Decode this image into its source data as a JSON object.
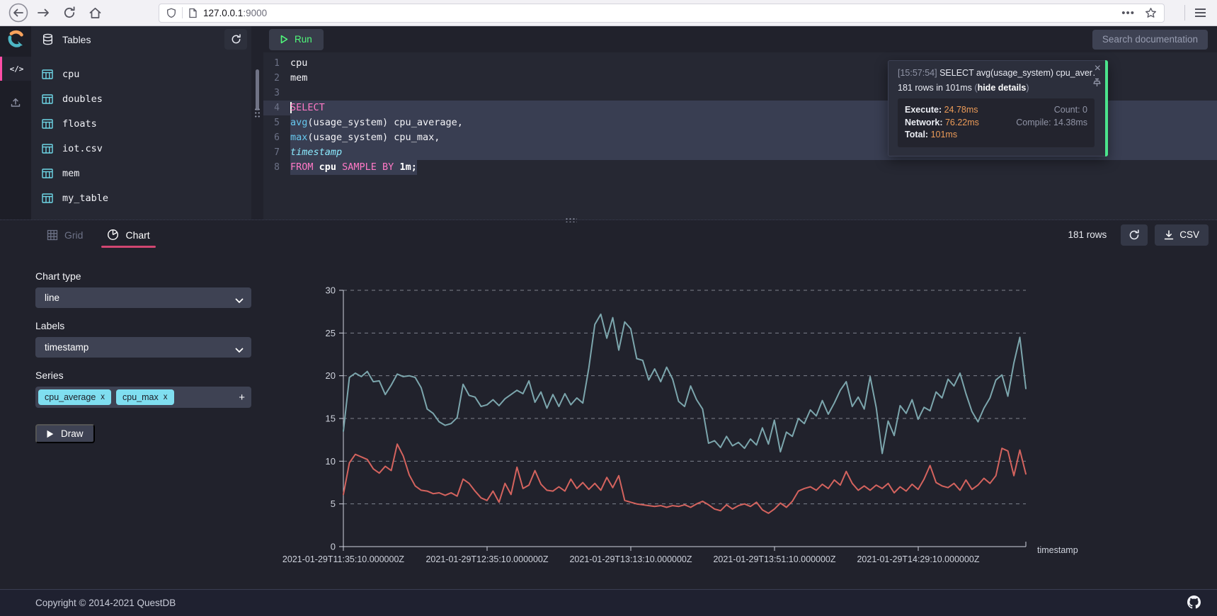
{
  "browser": {
    "url_host": "127.0.0.1",
    "url_port": ":9000"
  },
  "header": {
    "tables_title": "Tables",
    "run_label": "Run",
    "search_placeholder": "Search documentation"
  },
  "sidebar": {
    "tables": [
      {
        "name": "cpu"
      },
      {
        "name": "doubles"
      },
      {
        "name": "floats"
      },
      {
        "name": "iot.csv"
      },
      {
        "name": "mem"
      },
      {
        "name": "my_table"
      }
    ]
  },
  "editor": {
    "lines": [
      {
        "tokens": [
          {
            "t": "cpu",
            "c": "plain"
          }
        ]
      },
      {
        "tokens": [
          {
            "t": "mem",
            "c": "plain"
          }
        ]
      },
      {
        "tokens": []
      },
      {
        "tokens": [
          {
            "t": "SELECT",
            "c": "kw"
          }
        ],
        "sel": "full",
        "cursor": true
      },
      {
        "tokens": [
          {
            "t": "avg",
            "c": "fn"
          },
          {
            "t": "(usage_system) cpu_average,",
            "c": "plain"
          }
        ],
        "sel": "full"
      },
      {
        "tokens": [
          {
            "t": "max",
            "c": "fn"
          },
          {
            "t": "(usage_system) cpu_max,",
            "c": "plain"
          }
        ],
        "sel": "full"
      },
      {
        "tokens": [
          {
            "t": "timestamp",
            "c": "ts"
          }
        ],
        "sel": "full"
      },
      {
        "tokens": [
          {
            "t": "FROM ",
            "c": "kw"
          },
          {
            "t": "cpu ",
            "c": "b"
          },
          {
            "t": "SAMPLE BY ",
            "c": "kw"
          },
          {
            "t": "1m;",
            "c": "b"
          }
        ],
        "sel": "fit"
      }
    ]
  },
  "notification": {
    "time": "[15:57:54]",
    "query": "SELECT avg(usage_system) cpu_aver…",
    "summary": "181 rows in 101ms",
    "hide_details": "hide details",
    "execute_label": "Execute:",
    "execute_value": "24.78ms",
    "network_label": "Network:",
    "network_value": "76.22ms",
    "total_label": "Total:",
    "total_value": "101ms",
    "count_label": "Count:",
    "count_value": "0",
    "compile_label": "Compile:",
    "compile_value": "14.38ms"
  },
  "results": {
    "tabs": [
      {
        "label": "Grid"
      },
      {
        "label": "Chart"
      }
    ],
    "rows_count": "181 rows",
    "csv_label": "CSV"
  },
  "chart_controls": {
    "chart_type_label": "Chart type",
    "chart_type_value": "line",
    "labels_label": "Labels",
    "labels_value": "timestamp",
    "series_label": "Series",
    "series_tags": [
      "cpu_average",
      "cpu_max"
    ],
    "draw_label": "Draw"
  },
  "chart_data": {
    "type": "line",
    "xlabel": "timestamp",
    "ylim": [
      0,
      30
    ],
    "yticks": [
      0,
      5,
      10,
      15,
      20,
      25,
      30
    ],
    "grid": "horizontal-dashed",
    "legend": "none",
    "x_tick_labels": [
      "2021-01-29T11:35:10.000000Z",
      "2021-01-29T12:35:10.000000Z",
      "2021-01-29T13:13:10.000000Z",
      "2021-01-29T13:51:10.000000Z",
      "2021-01-29T14:29:10.000000Z"
    ],
    "series": [
      {
        "name": "cpu_average",
        "color": "#d4635e",
        "values": [
          6.1,
          9.8,
          10.8,
          10.5,
          10.2,
          9.1,
          8.6,
          9.4,
          8.9,
          12.0,
          10.6,
          8.4,
          7.1,
          6.6,
          6.5,
          6.2,
          6.3,
          6.0,
          6.3,
          5.9,
          7.9,
          7.4,
          6.5,
          5.7,
          5.4,
          6.5,
          5.2,
          7.4,
          6.1,
          9.3,
          6.8,
          7.2,
          8.9,
          7.3,
          6.6,
          6.5,
          7.0,
          6.5,
          7.9,
          6.8,
          7.5,
          6.7,
          7.4,
          6.6,
          8.1,
          6.9,
          8.3,
          5.4,
          5.2,
          5.0,
          4.9,
          4.8,
          4.7,
          4.8,
          4.6,
          4.8,
          4.7,
          4.9,
          4.6,
          5.0,
          5.3,
          4.9,
          4.4,
          4.2,
          4.9,
          4.4,
          4.8,
          5.0,
          4.7,
          5.2,
          4.3,
          3.9,
          4.4,
          5.1,
          4.6,
          5.3,
          6.5,
          6.8,
          7.0,
          6.6,
          7.3,
          6.8,
          7.8,
          7.2,
          8.8,
          7.4,
          6.6,
          7.1,
          6.6,
          7.2,
          6.8,
          7.4,
          6.3,
          7.0,
          6.5,
          7.3,
          6.7,
          7.9,
          9.5,
          7.5,
          7.1,
          6.9,
          7.4,
          6.6,
          7.8,
          6.7,
          7.2,
          8.0,
          7.4,
          8.3,
          11.5,
          11.2,
          8.3,
          11.3,
          8.5
        ]
      },
      {
        "name": "cpu_max",
        "color": "#7ca6ad",
        "values": [
          13.5,
          19.8,
          20.3,
          19.9,
          20.5,
          19.3,
          19.4,
          17.8,
          18.9,
          20.2,
          19.9,
          20.0,
          19.8,
          18.6,
          16.1,
          15.6,
          14.6,
          14.2,
          14.4,
          15.1,
          19.0,
          17.7,
          17.5,
          16.4,
          16.6,
          17.2,
          16.5,
          17.3,
          17.8,
          18.3,
          17.9,
          19.4,
          16.9,
          18.1,
          16.2,
          17.8,
          16.4,
          17.9,
          16.6,
          17.4,
          16.8,
          20.9,
          26.0,
          27.2,
          24.4,
          26.8,
          23.0,
          26.3,
          25.5,
          22.0,
          21.8,
          19.5,
          20.8,
          19.3,
          21.0,
          19.6,
          17.0,
          16.4,
          18.8,
          17.2,
          16.1,
          12.1,
          12.4,
          11.6,
          12.9,
          11.8,
          12.2,
          11.5,
          12.6,
          11.9,
          13.9,
          12.0,
          14.8,
          11.1,
          13.4,
          12.9,
          15.0,
          14.4,
          16.0,
          15.3,
          17.1,
          15.5,
          16.8,
          18.3,
          19.3,
          16.4,
          17.5,
          16.1,
          19.9,
          16.3,
          10.9,
          14.7,
          13.0,
          16.5,
          15.6,
          17.2,
          14.9,
          16.3,
          15.9,
          18.1,
          17.4,
          19.6,
          18.8,
          20.3,
          17.9,
          15.8,
          14.6,
          16.2,
          17.4,
          19.5,
          20.1,
          17.6,
          21.5,
          24.5,
          18.5
        ]
      }
    ]
  },
  "footer": {
    "copyright": "Copyright © 2014-2021 QuestDB"
  }
}
